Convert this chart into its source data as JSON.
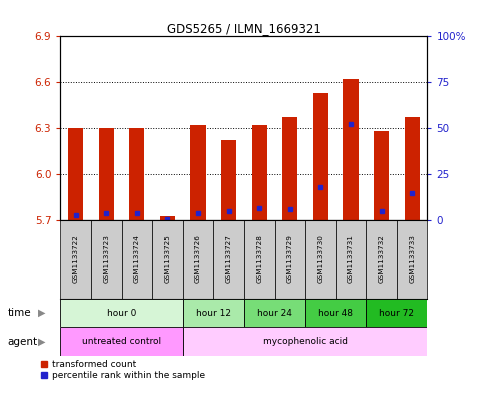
{
  "title": "GDS5265 / ILMN_1669321",
  "samples": [
    "GSM1133722",
    "GSM1133723",
    "GSM1133724",
    "GSM1133725",
    "GSM1133726",
    "GSM1133727",
    "GSM1133728",
    "GSM1133729",
    "GSM1133730",
    "GSM1133731",
    "GSM1133732",
    "GSM1133733"
  ],
  "transformed_counts": [
    6.3,
    6.3,
    6.3,
    5.73,
    6.32,
    6.22,
    6.32,
    6.37,
    6.53,
    6.62,
    6.28,
    6.37
  ],
  "percentile_ranks": [
    3,
    4,
    4,
    1,
    4,
    5,
    7,
    6,
    18,
    52,
    5,
    15
  ],
  "ymin": 5.7,
  "ymax": 6.9,
  "yticks": [
    5.7,
    6.0,
    6.3,
    6.6,
    6.9
  ],
  "right_yticks": [
    0,
    25,
    50,
    75,
    100
  ],
  "time_groups": [
    {
      "label": "hour 0",
      "start": 0,
      "end": 4,
      "color": "#d6f5d6"
    },
    {
      "label": "hour 12",
      "start": 4,
      "end": 6,
      "color": "#aaeaaa"
    },
    {
      "label": "hour 24",
      "start": 6,
      "end": 8,
      "color": "#77dd77"
    },
    {
      "label": "hour 48",
      "start": 8,
      "end": 10,
      "color": "#44cc44"
    },
    {
      "label": "hour 72",
      "start": 10,
      "end": 12,
      "color": "#22bb22"
    }
  ],
  "agent_groups": [
    {
      "label": "untreated control",
      "start": 0,
      "end": 4,
      "color": "#ff99ff"
    },
    {
      "label": "mycophenolic acid",
      "start": 4,
      "end": 12,
      "color": "#ffccff"
    }
  ],
  "bar_color": "#cc2200",
  "percentile_color": "#2222cc",
  "base_value": 5.7,
  "bg_color": "#ffffff",
  "tick_label_color_left": "#cc2200",
  "tick_label_color_right": "#2222cc",
  "sample_bg_color": "#cccccc",
  "border_color": "#000000",
  "bar_width": 0.5
}
